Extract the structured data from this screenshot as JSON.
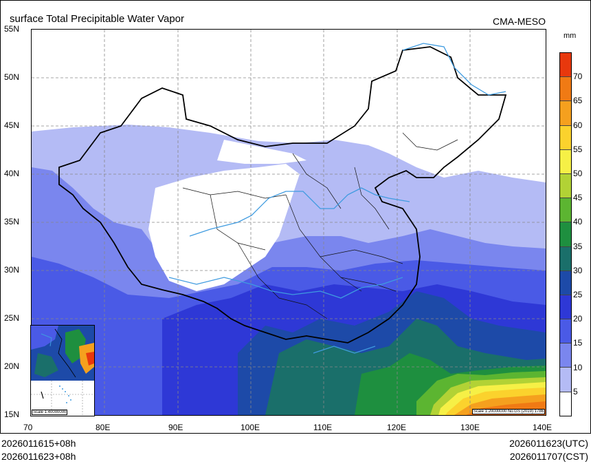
{
  "title": "surface Total Precipitable Water Vapor",
  "model": "CMA-MESO",
  "unit": "mm",
  "lat_labels": [
    "55N",
    "50N",
    "45N",
    "40N",
    "35N",
    "30N",
    "25N",
    "20N",
    "15N"
  ],
  "lon_labels": [
    "70",
    "80E",
    "90E",
    "100E",
    "110E",
    "120E",
    "130E",
    "140E"
  ],
  "colorbar": {
    "levels": [
      "70",
      "65",
      "60",
      "55",
      "50",
      "45",
      "40",
      "35",
      "30",
      "25",
      "20",
      "15",
      "10",
      "5"
    ],
    "colors": [
      "#e8380d",
      "#f07a14",
      "#f5a01e",
      "#fbd22d",
      "#f6f046",
      "#b2d235",
      "#5cb531",
      "#1e8f3f",
      "#1a6f6a",
      "#1d4aa8",
      "#2e38d6",
      "#4a5ae6",
      "#7a86ee",
      "#b4bbf5",
      "#ffffff"
    ]
  },
  "inset_scale": "Scale 1:40000000",
  "main_scale": "Scale 1:20000000 No:GS (2019) 1786",
  "footer": {
    "left_line1": "2026011615+08h",
    "left_line2": "2026011623+08h",
    "right_line1": "2026011623(UTC)",
    "right_line2": "2026011707(CST)"
  }
}
